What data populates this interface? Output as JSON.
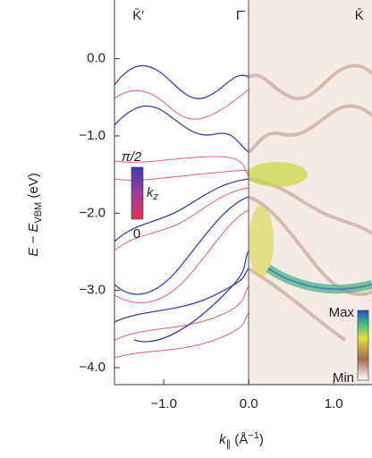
{
  "chart_data": {
    "type": "band-map",
    "xlabel": {
      "main": "k",
      "sub": "∥",
      "unit_open": " (Å",
      "sup": "−1",
      "unit_close": ")"
    },
    "ylabel": {
      "main": "E − E",
      "sub": "VBM",
      "unit": " (eV)"
    },
    "xlim": [
      -1.58,
      1.45
    ],
    "ylim": [
      0.76,
      -4.22
    ],
    "xticks": [
      {
        "value": -1,
        "label": "−1.0"
      },
      {
        "value": 0,
        "label": "0.0"
      },
      {
        "value": 1,
        "label": "1.0"
      }
    ],
    "yticks": [
      {
        "value": 0,
        "label": "0.0"
      },
      {
        "value": -1,
        "label": "−1.0"
      },
      {
        "value": -2,
        "label": "−2.0"
      },
      {
        "value": -3,
        "label": "−3.0"
      },
      {
        "value": -4,
        "label": "−4.0"
      }
    ],
    "symmetry_points": [
      {
        "label": "K̄′",
        "x": -1.3
      },
      {
        "label": "Γ̄",
        "x": 0
      },
      {
        "label": "K̄",
        "x": 1.3
      }
    ],
    "kz_legend": {
      "top": "π/2",
      "name": "k",
      "name_sub": "z",
      "bottom": "0"
    },
    "intensity_legend": {
      "top": "Max",
      "bottom": "Min"
    }
  }
}
